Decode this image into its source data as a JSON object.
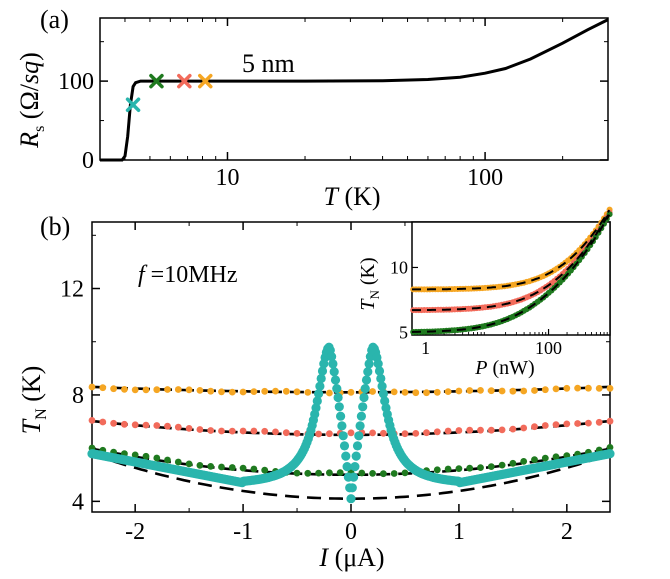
{
  "figure": {
    "panel_a_label": "(a)",
    "panel_b_label": "(b)",
    "inset_label_placeholder": ""
  },
  "chart_data": [
    {
      "id": "panel-a",
      "type": "line",
      "title": "",
      "annotation": "5 nm",
      "xlabel": "T (K)",
      "ylabel": "R_s (Ω/sq)",
      "xscale": "log",
      "xlim": [
        3.2,
        300
      ],
      "ylim": [
        0,
        180
      ],
      "xticks": [
        {
          "value": 10,
          "label": "10"
        },
        {
          "value": 100,
          "label": "100"
        }
      ],
      "yticks": [
        {
          "value": 0,
          "label": "0"
        },
        {
          "value": 100,
          "label": "100"
        }
      ],
      "grid": false,
      "series": [
        {
          "color": "#000000",
          "x": [
            3.2,
            3.6,
            3.9,
            4.0,
            4.1,
            4.2,
            4.3,
            4.4,
            4.6,
            5,
            6,
            8,
            12,
            20,
            40,
            60,
            80,
            100,
            120,
            150,
            200,
            250,
            300
          ],
          "y": [
            0,
            0,
            0,
            5,
            30,
            70,
            93,
            98,
            100,
            100,
            100,
            100,
            100,
            100,
            100.5,
            102,
            105,
            110,
            116,
            128,
            148,
            165,
            178
          ]
        }
      ],
      "markers": [
        {
          "x": 4.3,
          "y": 70,
          "color": "#2ab5ad",
          "symbol": "x"
        },
        {
          "x": 5.3,
          "y": 100,
          "color": "#1f7a1f",
          "symbol": "x"
        },
        {
          "x": 6.8,
          "y": 100,
          "color": "#f26b5b",
          "symbol": "x"
        },
        {
          "x": 8.2,
          "y": 100,
          "color": "#f5a623",
          "symbol": "x"
        }
      ]
    },
    {
      "id": "panel-b",
      "type": "scatter",
      "title": "",
      "annotation": "f =10MHz",
      "xlabel": "I (μA)",
      "ylabel": "T_N (K)",
      "xlim": [
        -2.4,
        2.4
      ],
      "ylim": [
        3.6,
        14.5
      ],
      "xticks": [
        {
          "value": -2,
          "label": "-2"
        },
        {
          "value": -1,
          "label": "-1"
        },
        {
          "value": 0,
          "label": "0"
        },
        {
          "value": 1,
          "label": "1"
        },
        {
          "value": 2,
          "label": "2"
        }
      ],
      "yticks": [
        {
          "value": 4,
          "label": "4"
        },
        {
          "value": 8,
          "label": "8"
        },
        {
          "value": 12,
          "label": "12"
        }
      ],
      "grid": false,
      "series": [
        {
          "color": "#f5a623",
          "kind": "flat",
          "base": 8.1,
          "curv": 0.03,
          "edge": 8.3
        },
        {
          "color": "#f26b5b",
          "kind": "flat",
          "base": 6.55,
          "curv": 0.085,
          "edge": 7.05
        },
        {
          "color": "#1f7a1f",
          "kind": "flat",
          "base": 5.05,
          "curv": 0.17,
          "edge": 6.0
        },
        {
          "color": "#2ab5ad",
          "kind": "peaked",
          "base": 5.05,
          "peak_x": 0.2,
          "peak_y": 9.8,
          "center_y": 4.1,
          "edge": 5.75
        }
      ],
      "fits": [
        {
          "base": 8.1,
          "curv": 0.035
        },
        {
          "base": 6.5,
          "curv": 0.09
        },
        {
          "base": 5.0,
          "curv": 0.17
        },
        {
          "base": 4.1,
          "curv": 0.29
        }
      ]
    },
    {
      "id": "inset",
      "type": "scatter",
      "title": "",
      "xlabel": "P (nW)",
      "ylabel": "T_N (K)",
      "xscale": "log",
      "xlim": [
        0.6,
        1000
      ],
      "ylim": [
        4.8,
        13.5
      ],
      "xticks": [
        {
          "value": 1,
          "label": "1"
        },
        {
          "value": 100,
          "label": "100"
        }
      ],
      "yticks": [
        {
          "value": 5,
          "label": "5"
        },
        {
          "value": 10,
          "label": "10"
        }
      ],
      "grid": false,
      "series": [
        {
          "color": "#f5a623",
          "t0": 8.3
        },
        {
          "color": "#f26b5b",
          "t0": 6.7
        },
        {
          "color": "#1f7a1f",
          "t0": 5.0
        }
      ],
      "p_scale": 120,
      "t_top": 13.3
    }
  ]
}
